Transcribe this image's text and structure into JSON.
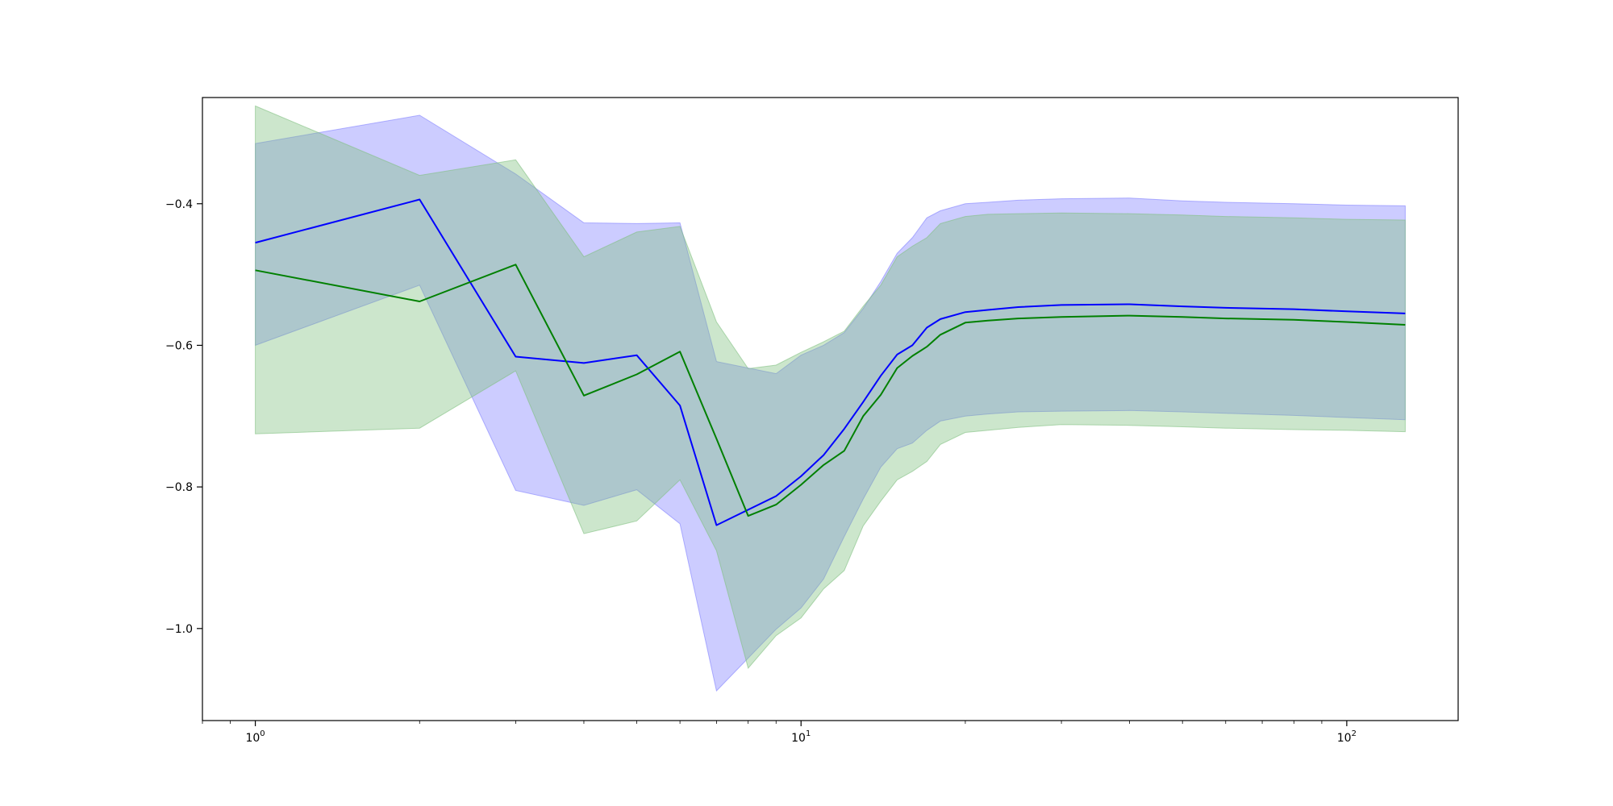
{
  "chart_data": {
    "type": "line",
    "title": "",
    "xlabel": "",
    "ylabel": "",
    "x_scale": "log",
    "xlim": [
      0.8,
      160
    ],
    "ylim": [
      -1.13,
      -0.25
    ],
    "x_ticks": [
      {
        "value": 1,
        "base": "10",
        "exp": "0"
      },
      {
        "value": 10,
        "base": "10",
        "exp": "1"
      },
      {
        "value": 100,
        "base": "10",
        "exp": "2"
      }
    ],
    "y_ticks": [
      {
        "value": -0.4,
        "label": "−0.4"
      },
      {
        "value": -0.6,
        "label": "−0.6"
      },
      {
        "value": -0.8,
        "label": "−0.8"
      },
      {
        "value": -1.0,
        "label": "−1.0"
      }
    ],
    "grid": false,
    "legend": "none",
    "series": [
      {
        "color": "#0000ff",
        "band_color": "#8080ff",
        "x": [
          1,
          2,
          3,
          4,
          5,
          6,
          7,
          9,
          10,
          11,
          12,
          13,
          14,
          15,
          16,
          17,
          18,
          20,
          22,
          25,
          30,
          40,
          50,
          60,
          80,
          100,
          128
        ],
        "mean": [
          -0.455,
          -0.394,
          -0.616,
          -0.625,
          -0.614,
          -0.685,
          -0.854,
          -0.813,
          -0.785,
          -0.755,
          -0.718,
          -0.68,
          -0.643,
          -0.613,
          -0.6,
          -0.575,
          -0.563,
          -0.553,
          -0.55,
          -0.546,
          -0.543,
          -0.542,
          -0.545,
          -0.547,
          -0.549,
          -0.552,
          -0.555
        ],
        "upper": [
          -0.315,
          -0.275,
          -0.358,
          -0.427,
          -0.428,
          -0.427,
          -0.623,
          -0.64,
          -0.614,
          -0.6,
          -0.582,
          -0.548,
          -0.51,
          -0.47,
          -0.448,
          -0.42,
          -0.41,
          -0.4,
          -0.398,
          -0.395,
          -0.393,
          -0.392,
          -0.396,
          -0.398,
          -0.4,
          -0.402,
          -0.403
        ],
        "lower": [
          -0.6,
          -0.515,
          -0.805,
          -0.826,
          -0.804,
          -0.852,
          -1.088,
          -1.001,
          -0.971,
          -0.93,
          -0.87,
          -0.817,
          -0.772,
          -0.746,
          -0.738,
          -0.72,
          -0.707,
          -0.7,
          -0.697,
          -0.694,
          -0.693,
          -0.692,
          -0.694,
          -0.696,
          -0.699,
          -0.702,
          -0.705
        ]
      },
      {
        "color": "#008000",
        "band_color": "#80c080",
        "x": [
          1,
          2,
          3,
          4,
          5,
          6,
          7,
          8,
          9,
          10,
          11,
          12,
          13,
          14,
          15,
          16,
          17,
          18,
          20,
          22,
          25,
          30,
          40,
          50,
          60,
          80,
          100,
          128
        ],
        "mean": [
          -0.494,
          -0.538,
          -0.486,
          -0.671,
          -0.641,
          -0.609,
          -0.732,
          -0.841,
          -0.825,
          -0.797,
          -0.769,
          -0.749,
          -0.7,
          -0.67,
          -0.632,
          -0.615,
          -0.602,
          -0.585,
          -0.568,
          -0.565,
          -0.562,
          -0.56,
          -0.558,
          -0.56,
          -0.562,
          -0.564,
          -0.567,
          -0.571
        ],
        "upper": [
          -0.262,
          -0.36,
          -0.338,
          -0.475,
          -0.44,
          -0.432,
          -0.567,
          -0.633,
          -0.628,
          -0.61,
          -0.595,
          -0.58,
          -0.545,
          -0.515,
          -0.475,
          -0.46,
          -0.448,
          -0.428,
          -0.418,
          -0.415,
          -0.414,
          -0.413,
          -0.414,
          -0.416,
          -0.418,
          -0.42,
          -0.422,
          -0.423
        ],
        "lower": [
          -0.725,
          -0.717,
          -0.636,
          -0.866,
          -0.848,
          -0.79,
          -0.89,
          -1.056,
          -1.01,
          -0.985,
          -0.944,
          -0.918,
          -0.855,
          -0.82,
          -0.79,
          -0.778,
          -0.764,
          -0.74,
          -0.723,
          -0.72,
          -0.716,
          -0.712,
          -0.713,
          -0.715,
          -0.717,
          -0.719,
          -0.72,
          -0.722
        ]
      }
    ]
  }
}
